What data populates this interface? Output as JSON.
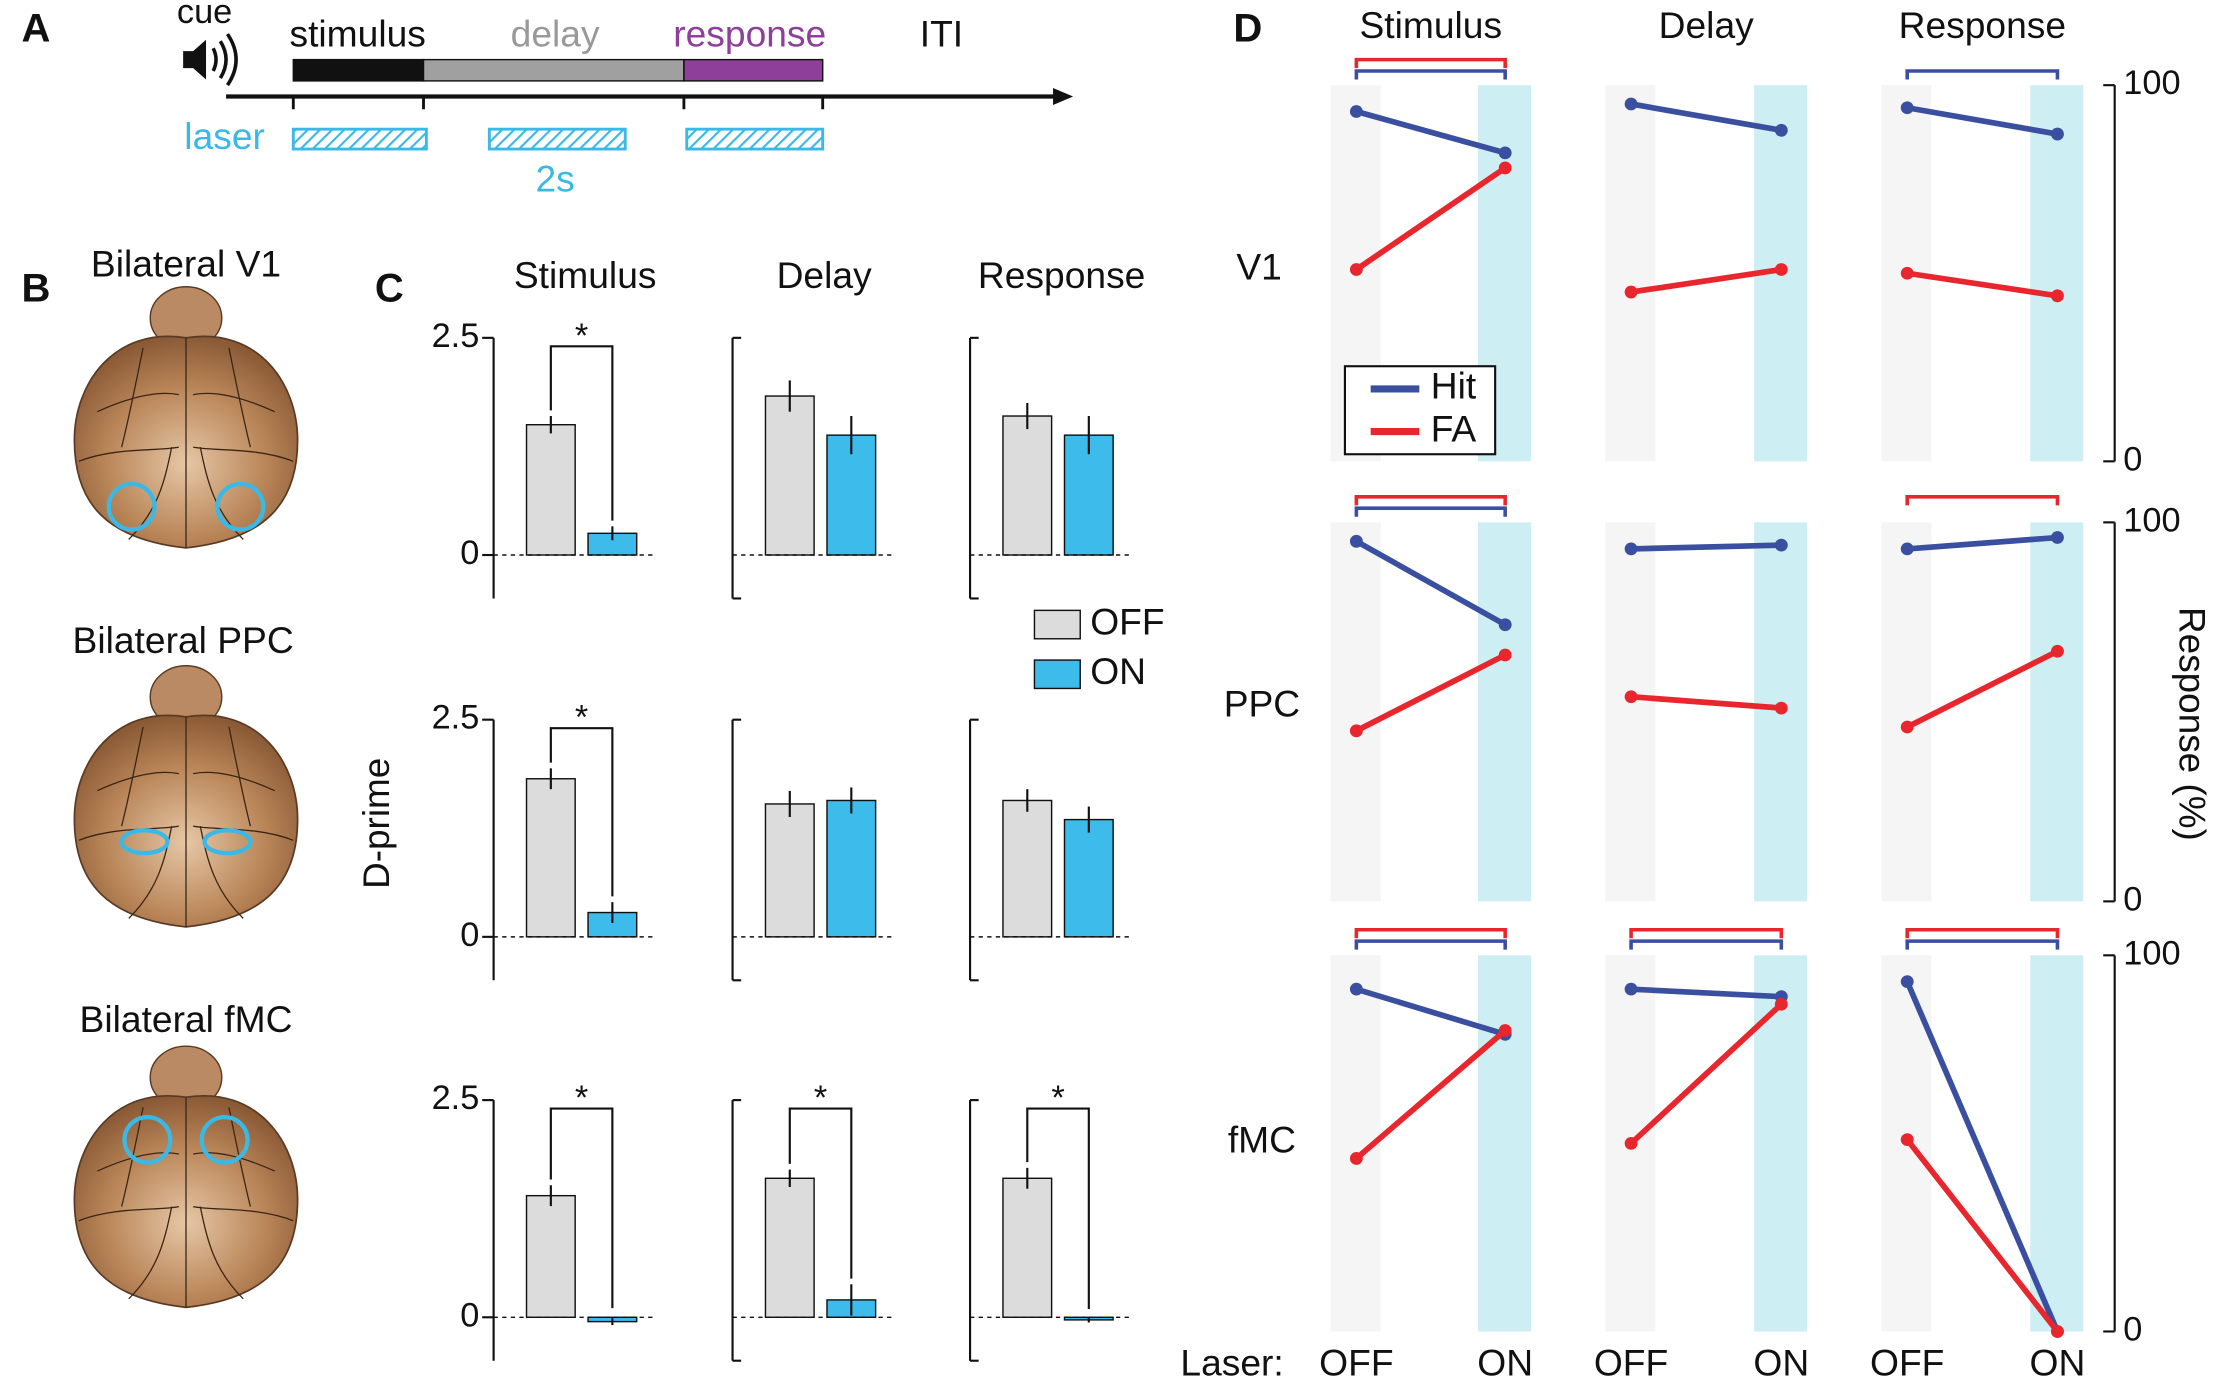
{
  "panel_labels": [
    "A",
    "B",
    "C",
    "D"
  ],
  "timeline": {
    "cue": "cue",
    "phases": [
      "stimulus",
      "delay",
      "response",
      "ITI"
    ],
    "laser": "laser",
    "duration": "2s"
  },
  "brains": [
    "Bilateral V1",
    "Bilateral PPC",
    "Bilateral fMC"
  ],
  "c_ylabel": "D-prime",
  "c_legend": {
    "labels": [
      "OFF",
      "ON"
    ],
    "colors": [
      "#dcdcdc",
      "#3dbbea"
    ]
  },
  "d_row_labels": [
    "V1",
    "PPC",
    "fMC"
  ],
  "d_xlabel": "Laser:",
  "d_ylabel": "Response (%)",
  "chart_data": [
    {
      "type": "bar",
      "title": "Stimulus",
      "values": [
        1.5,
        0.25
      ],
      "errors": [
        0.1,
        0.08
      ],
      "colors": [
        "#dcdcdc",
        "#3dbbea"
      ],
      "ylim": [
        -0.5,
        2.5
      ],
      "yticks": [
        0,
        2.5
      ],
      "significance": "*"
    },
    {
      "type": "bar",
      "title": "Delay",
      "values": [
        1.83,
        1.38
      ],
      "errors": [
        0.18,
        0.22
      ],
      "colors": [
        "#dcdcdc",
        "#3dbbea"
      ],
      "ylim": [
        -0.5,
        2.5
      ]
    },
    {
      "type": "bar",
      "title": "Response",
      "values": [
        1.6,
        1.38
      ],
      "errors": [
        0.15,
        0.22
      ],
      "colors": [
        "#dcdcdc",
        "#3dbbea"
      ],
      "ylim": [
        -0.5,
        2.5
      ]
    },
    {
      "type": "bar",
      "values": [
        1.82,
        0.28
      ],
      "errors": [
        0.12,
        0.12
      ],
      "colors": [
        "#dcdcdc",
        "#3dbbea"
      ],
      "ylim": [
        -0.5,
        2.5
      ],
      "yticks": [
        0,
        2.5
      ],
      "significance": "*"
    },
    {
      "type": "bar",
      "values": [
        1.53,
        1.57
      ],
      "errors": [
        0.15,
        0.15
      ],
      "colors": [
        "#dcdcdc",
        "#3dbbea"
      ],
      "ylim": [
        -0.5,
        2.5
      ]
    },
    {
      "type": "bar",
      "values": [
        1.57,
        1.35
      ],
      "errors": [
        0.13,
        0.15
      ],
      "colors": [
        "#dcdcdc",
        "#3dbbea"
      ],
      "ylim": [
        -0.5,
        2.5
      ]
    },
    {
      "type": "bar",
      "values": [
        1.4,
        -0.05
      ],
      "errors": [
        0.12,
        0.04
      ],
      "colors": [
        "#dcdcdc",
        "#3dbbea"
      ],
      "ylim": [
        -0.5,
        2.5
      ],
      "yticks": [
        0,
        2.5
      ],
      "significance": "*"
    },
    {
      "type": "bar",
      "values": [
        1.6,
        0.2
      ],
      "errors": [
        0.1,
        0.18
      ],
      "colors": [
        "#dcdcdc",
        "#3dbbea"
      ],
      "ylim": [
        -0.5,
        2.5
      ],
      "significance": "*"
    },
    {
      "type": "bar",
      "values": [
        1.6,
        -0.03
      ],
      "errors": [
        0.12,
        0.03
      ],
      "colors": [
        "#dcdcdc",
        "#3dbbea"
      ],
      "ylim": [
        -0.5,
        2.5
      ],
      "significance": "*"
    },
    {
      "type": "line",
      "title": "Stimulus",
      "legend": "upper left",
      "series": [
        {
          "name": "Hit",
          "color": "#3a4fa0",
          "values": [
            93,
            82
          ]
        },
        {
          "name": "FA",
          "color": "#e8262d",
          "values": [
            51,
            78
          ]
        }
      ],
      "ylim": [
        0,
        100
      ],
      "brackets": [
        "FA",
        "Hit"
      ]
    },
    {
      "type": "line",
      "title": "Delay",
      "series": [
        {
          "name": "Hit",
          "color": "#3a4fa0",
          "values": [
            95,
            88
          ]
        },
        {
          "name": "FA",
          "color": "#e8262d",
          "values": [
            45,
            51
          ]
        }
      ],
      "ylim": [
        0,
        100
      ],
      "brackets": []
    },
    {
      "type": "line",
      "title": "Response",
      "series": [
        {
          "name": "Hit",
          "color": "#3a4fa0",
          "values": [
            94,
            87
          ]
        },
        {
          "name": "FA",
          "color": "#e8262d",
          "values": [
            50,
            44
          ]
        }
      ],
      "ylim": [
        0,
        100
      ],
      "yticks": [
        0,
        100
      ],
      "brackets": [
        "Hit"
      ]
    },
    {
      "type": "line",
      "series": [
        {
          "name": "Hit",
          "color": "#3a4fa0",
          "values": [
            95,
            73
          ]
        },
        {
          "name": "FA",
          "color": "#e8262d",
          "values": [
            45,
            65
          ]
        }
      ],
      "ylim": [
        0,
        100
      ],
      "brackets": [
        "FA",
        "Hit"
      ]
    },
    {
      "type": "line",
      "series": [
        {
          "name": "Hit",
          "color": "#3a4fa0",
          "values": [
            93,
            94
          ]
        },
        {
          "name": "FA",
          "color": "#e8262d",
          "values": [
            54,
            51
          ]
        }
      ],
      "ylim": [
        0,
        100
      ],
      "brackets": []
    },
    {
      "type": "line",
      "series": [
        {
          "name": "Hit",
          "color": "#3a4fa0",
          "values": [
            93,
            96
          ]
        },
        {
          "name": "FA",
          "color": "#e8262d",
          "values": [
            46,
            66
          ]
        }
      ],
      "ylim": [
        0,
        100
      ],
      "yticks": [
        0,
        100
      ],
      "brackets": [
        "FA"
      ]
    },
    {
      "type": "line",
      "categories": [
        "OFF",
        "ON"
      ],
      "series": [
        {
          "name": "Hit",
          "color": "#3a4fa0",
          "values": [
            91,
            79
          ]
        },
        {
          "name": "FA",
          "color": "#e8262d",
          "values": [
            46,
            80
          ]
        }
      ],
      "ylim": [
        0,
        100
      ],
      "brackets": [
        "FA",
        "Hit"
      ]
    },
    {
      "type": "line",
      "categories": [
        "OFF",
        "ON"
      ],
      "series": [
        {
          "name": "Hit",
          "color": "#3a4fa0",
          "values": [
            91,
            89
          ]
        },
        {
          "name": "FA",
          "color": "#e8262d",
          "values": [
            50,
            87
          ]
        }
      ],
      "ylim": [
        0,
        100
      ],
      "brackets": [
        "FA",
        "Hit"
      ]
    },
    {
      "type": "line",
      "categories": [
        "OFF",
        "ON"
      ],
      "series": [
        {
          "name": "Hit",
          "color": "#3a4fa0",
          "values": [
            93,
            0
          ]
        },
        {
          "name": "FA",
          "color": "#e8262d",
          "values": [
            51,
            0
          ]
        }
      ],
      "ylim": [
        0,
        100
      ],
      "yticks": [
        0,
        100
      ],
      "brackets": [
        "FA",
        "Hit"
      ]
    }
  ]
}
